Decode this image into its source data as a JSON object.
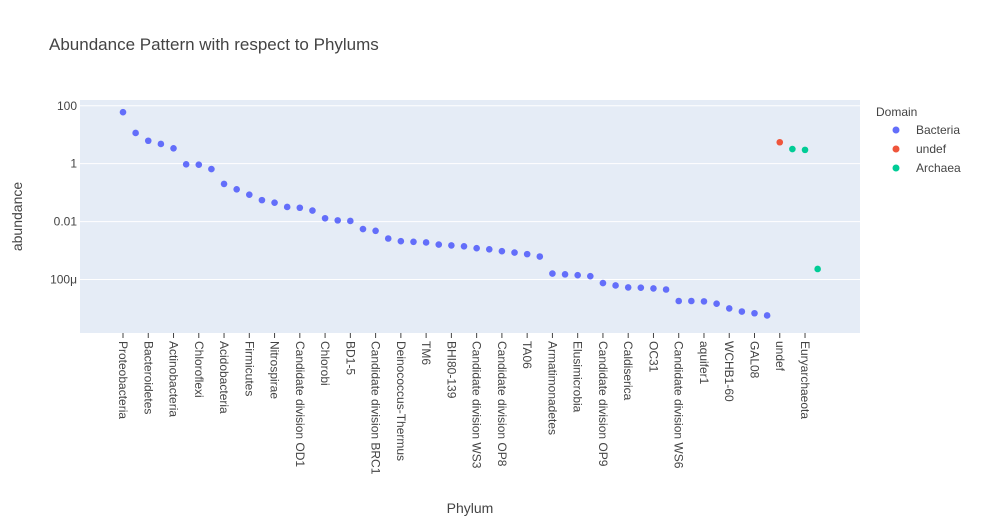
{
  "chart_data": {
    "type": "scatter",
    "title": "Abundance Pattern with respect to Phylums",
    "xlabel": "Phylum",
    "ylabel": "abundance",
    "yscale": "log",
    "ylim_log10": [
      -5.85,
      2.2
    ],
    "yticks": [
      {
        "log10": 2,
        "label": "100"
      },
      {
        "log10": 0,
        "label": "1"
      },
      {
        "log10": -2,
        "label": "0.01"
      },
      {
        "log10": -4,
        "label": "100μ"
      }
    ],
    "grid": true,
    "legend": {
      "title": "Domain",
      "placement": "right"
    },
    "x_categories_count": 57,
    "tick_labels": [
      {
        "index": 0,
        "label": "Proteobacteria"
      },
      {
        "index": 2,
        "label": "Bacteroidetes"
      },
      {
        "index": 4,
        "label": "Actinobacteria"
      },
      {
        "index": 6,
        "label": "Chloroflexi"
      },
      {
        "index": 8,
        "label": "Acidobacteria"
      },
      {
        "index": 10,
        "label": "Firmicutes"
      },
      {
        "index": 12,
        "label": "Nitrospirae"
      },
      {
        "index": 14,
        "label": "Candidate division OD1"
      },
      {
        "index": 16,
        "label": "Chlorobi"
      },
      {
        "index": 18,
        "label": "BD1-5"
      },
      {
        "index": 20,
        "label": "Candidate division BRC1"
      },
      {
        "index": 22,
        "label": "Deinococcus-Thermus"
      },
      {
        "index": 24,
        "label": "TM6"
      },
      {
        "index": 26,
        "label": "BHI80-139"
      },
      {
        "index": 28,
        "label": "Candidate division WS3"
      },
      {
        "index": 30,
        "label": "Candidate division OP8"
      },
      {
        "index": 32,
        "label": "TA06"
      },
      {
        "index": 34,
        "label": "Armatimonadetes"
      },
      {
        "index": 36,
        "label": "Elusimicrobia"
      },
      {
        "index": 38,
        "label": "Candidate division OP9"
      },
      {
        "index": 40,
        "label": "Caldiserica"
      },
      {
        "index": 42,
        "label": "OC31"
      },
      {
        "index": 44,
        "label": "Candidate division WS6"
      },
      {
        "index": 46,
        "label": "aquifer1"
      },
      {
        "index": 48,
        "label": "WCHB1-60"
      },
      {
        "index": 50,
        "label": "GAL08"
      },
      {
        "index": 52,
        "label": "undef"
      },
      {
        "index": 54,
        "label": "Euryarchaeota"
      }
    ],
    "series": [
      {
        "name": "Bacteria",
        "color": "#636efa",
        "x_index": [
          0,
          1,
          2,
          3,
          4,
          5,
          6,
          7,
          8,
          9,
          10,
          11,
          12,
          13,
          14,
          15,
          16,
          17,
          18,
          19,
          20,
          21,
          22,
          23,
          24,
          25,
          26,
          27,
          28,
          29,
          30,
          31,
          32,
          33,
          34,
          35,
          36,
          37,
          38,
          39,
          40,
          41,
          42,
          43,
          44,
          45,
          46,
          47,
          48,
          49,
          50,
          51
        ],
        "y": [
          60,
          11.5,
          6.2,
          4.8,
          3.4,
          0.95,
          0.92,
          0.65,
          0.2,
          0.13,
          0.085,
          0.055,
          0.045,
          0.032,
          0.03,
          0.024,
          0.013,
          0.011,
          0.0105,
          0.0055,
          0.0048,
          0.0026,
          0.0021,
          0.002,
          0.0019,
          0.0016,
          0.0015,
          0.0014,
          0.0012,
          0.0011,
          0.00095,
          0.00085,
          0.00075,
          0.00062,
          0.00016,
          0.00015,
          0.00014,
          0.00013,
          7.5e-05,
          6.2e-05,
          5.3e-05,
          5.2e-05,
          4.9e-05,
          4.5e-05,
          1.8e-05,
          1.8e-05,
          1.75e-05,
          1.45e-05,
          1e-05,
          7.8e-06,
          6.8e-06,
          5.7e-06
        ]
      },
      {
        "name": "undef",
        "color": "#ef553b",
        "x_index": [
          52
        ],
        "y": [
          5.5
        ]
      },
      {
        "name": "Archaea",
        "color": "#00cc96",
        "x_index": [
          53,
          54,
          55
        ],
        "y": [
          3.2,
          3.0,
          0.00023
        ]
      }
    ]
  }
}
